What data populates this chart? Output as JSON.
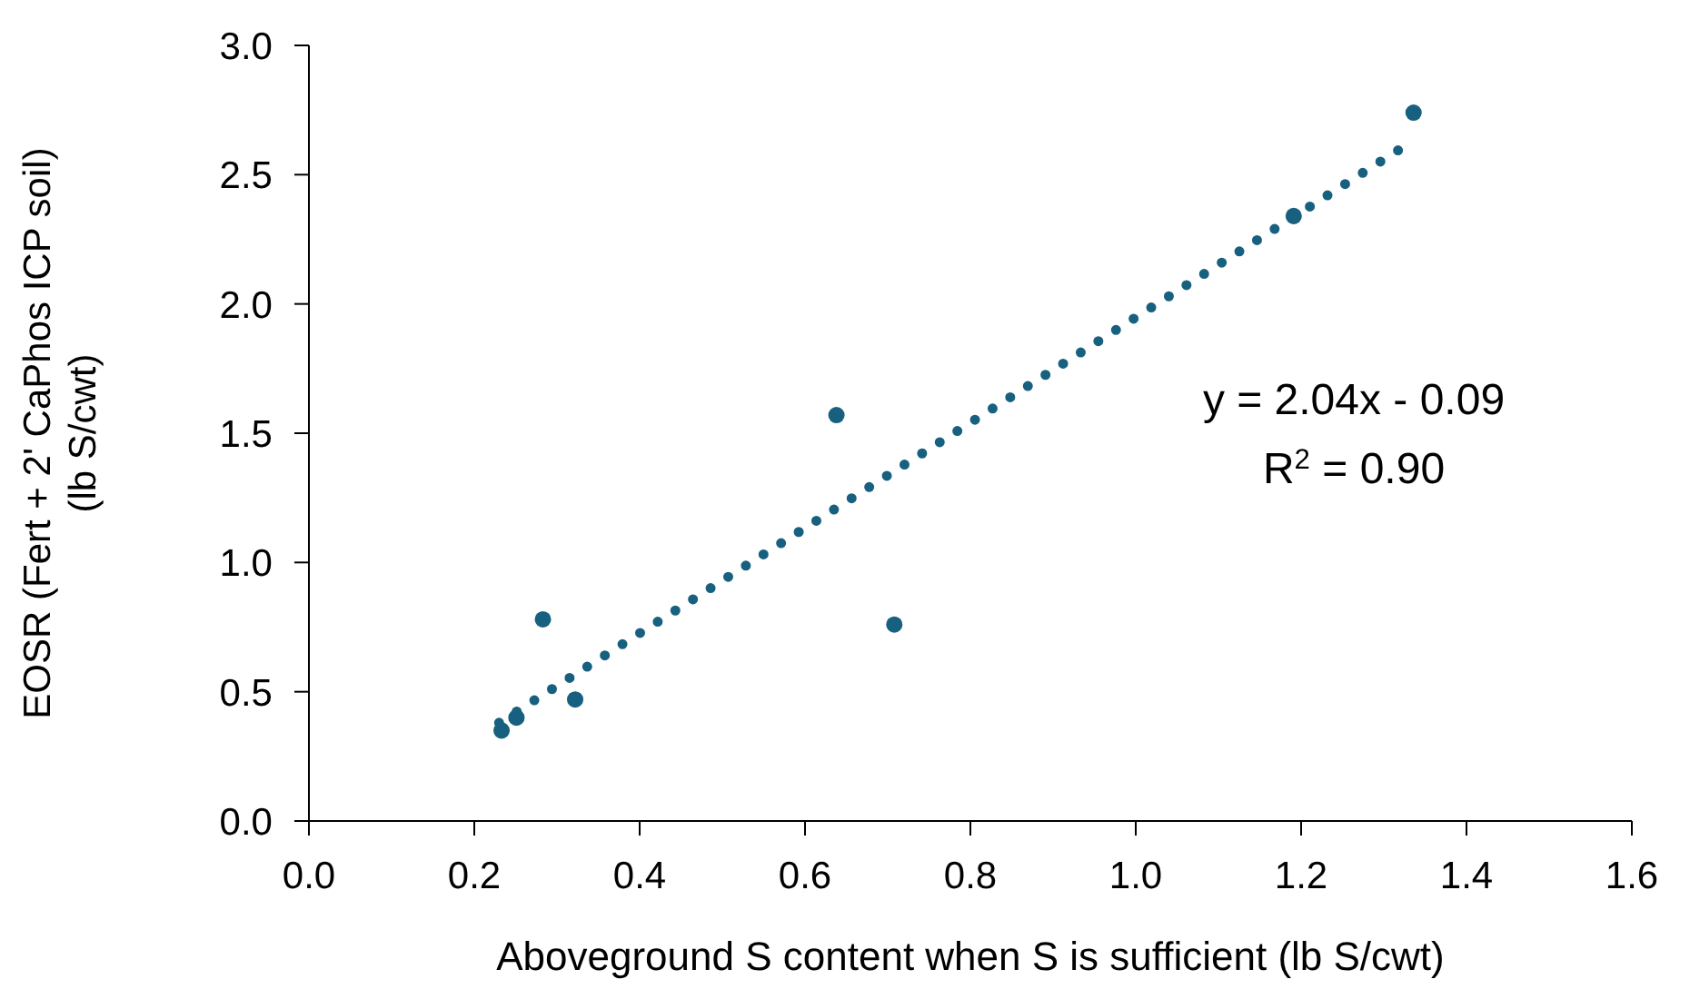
{
  "chart_data": {
    "type": "scatter",
    "xlabel": "Aboveground S content when S is sufficient (lb S/cwt)",
    "ylabel": "EOSR (Fert + 2' CaPhos ICP soil) (lb S/cwt)",
    "xlim": [
      0,
      1.6
    ],
    "xticks": [
      {
        "value": 0,
        "label": "0.0"
      },
      {
        "value": 0.2,
        "label": "0.2"
      },
      {
        "value": 0.4,
        "label": "0.4"
      },
      {
        "value": 0.6,
        "label": "0.6"
      },
      {
        "value": 0.8,
        "label": "0.8"
      },
      {
        "value": 1,
        "label": "1.0"
      },
      {
        "value": 1.2,
        "label": "1.2"
      },
      {
        "value": 1.4,
        "label": "1.4"
      },
      {
        "value": 1.6,
        "label": "1.6"
      }
    ],
    "ylim": [
      0,
      3
    ],
    "yticks": [
      {
        "value": 0,
        "label": "0.0"
      },
      {
        "value": 0.5,
        "label": "0.5"
      },
      {
        "value": 1,
        "label": "1.0"
      },
      {
        "value": 1.5,
        "label": "1.5"
      },
      {
        "value": 2,
        "label": "2.0"
      },
      {
        "value": 2.5,
        "label": "2.5"
      },
      {
        "value": 3,
        "label": "3.0"
      }
    ],
    "grid": false,
    "marker": "circle",
    "series": [
      {
        "color": "#17607f",
        "x": [
          0.233,
          0.251,
          0.283,
          0.322,
          0.638,
          0.708,
          1.191,
          1.336
        ],
        "values": [
          0.35,
          0.4,
          0.78,
          0.47,
          1.57,
          0.76,
          2.34,
          2.74
        ]
      },
      {
        "type": "line",
        "color": "#17607f",
        "line_style": "dotted",
        "marker": "none",
        "x": [
          0.23,
          1.33
        ],
        "values": [
          0.38,
          2.62
        ]
      }
    ],
    "annotations": [
      "y = 2.04x - 0.09",
      "R$^{2}$ = 0.90"
    ]
  }
}
